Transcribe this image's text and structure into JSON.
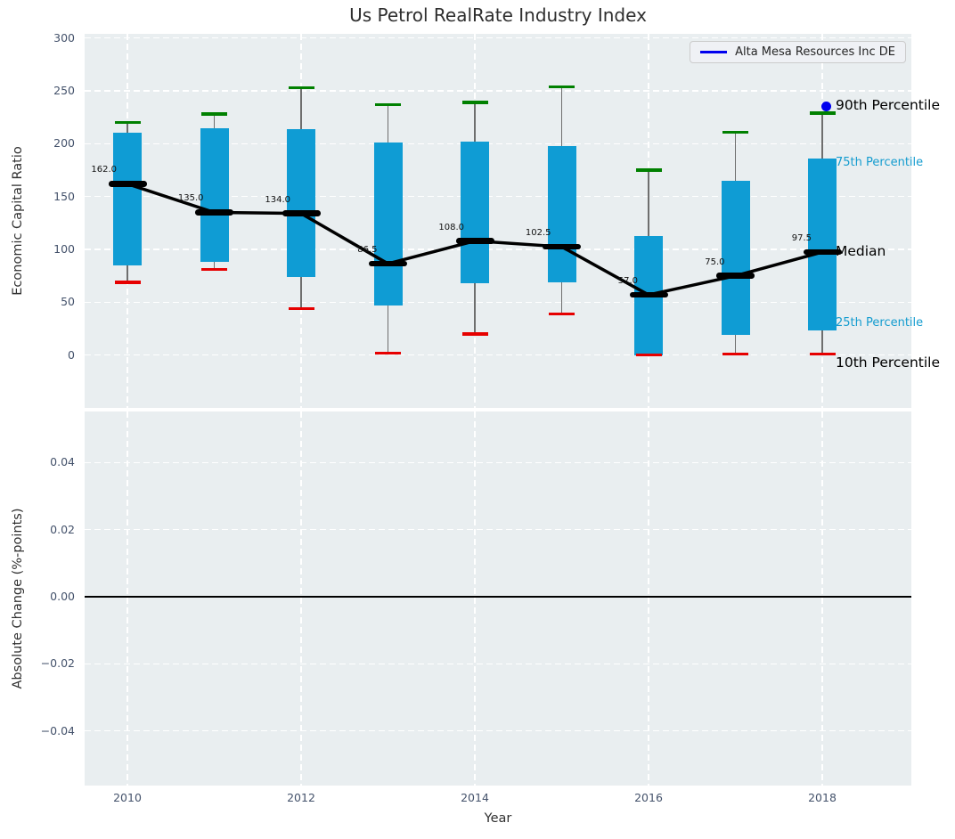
{
  "title": "Us Petrol RealRate Industry Index",
  "legend": {
    "label": "Alta Mesa Resources Inc DE",
    "line_color": "#0000ee"
  },
  "chart_data": [
    {
      "type": "boxplot",
      "panel": "top",
      "title": "Us Petrol RealRate Industry Index",
      "ylabel": "Economic Capital Ratio",
      "xlabel": "Year",
      "ylim": [
        -55,
        304
      ],
      "yticks": [
        0,
        50,
        100,
        150,
        200,
        250,
        300
      ],
      "ytick_labels": [
        "0",
        "50",
        "100",
        "150",
        "200",
        "250",
        "300"
      ],
      "xticks": [
        2010,
        2012,
        2014,
        2016,
        2018
      ],
      "xtick_labels": [
        "2010",
        "2012",
        "2014",
        "2016",
        "2018"
      ],
      "grid": true,
      "legend_position": "upper right",
      "years": [
        2010,
        2011,
        2012,
        2013,
        2014,
        2015,
        2016,
        2017,
        2018
      ],
      "series": [
        {
          "name": "90th Percentile",
          "values": [
            220,
            228,
            253,
            237,
            239,
            254,
            175,
            211,
            229
          ]
        },
        {
          "name": "75th Percentile",
          "values": [
            210,
            215,
            214,
            201,
            202,
            198,
            113,
            165,
            186
          ]
        },
        {
          "name": "Median",
          "values": [
            162.0,
            135.0,
            134.0,
            86.5,
            108.0,
            102.5,
            57.0,
            75.0,
            97.5
          ]
        },
        {
          "name": "25th Percentile",
          "values": [
            85,
            88,
            74,
            47,
            68,
            69,
            0,
            19,
            23
          ]
        },
        {
          "name": "10th Percentile",
          "values": [
            69,
            81,
            44,
            2,
            20,
            39,
            0,
            1,
            1
          ]
        }
      ],
      "median_value_labels": [
        "162.0",
        "135.0",
        "134.0",
        "86.5",
        "108.0",
        "102.5",
        "57.0",
        "75.0",
        "97.5"
      ],
      "company_point": {
        "name": "Alta Mesa Resources Inc DE",
        "year": 2018,
        "value": 235.5
      },
      "end_labels": [
        {
          "text": "90th Percentile",
          "value": 236,
          "color": "#000000",
          "size": "large"
        },
        {
          "text": "75th Percentile",
          "value": 182,
          "color": "#149ccf",
          "size": "small"
        },
        {
          "text": "Median",
          "value": 97.5,
          "color": "#000000",
          "size": "large"
        },
        {
          "text": "25th Percentile",
          "value": 30,
          "color": "#149ccf",
          "size": "small"
        },
        {
          "text": "10th Percentile",
          "value": -8,
          "color": "#000000",
          "size": "large"
        }
      ],
      "colors": {
        "box": "#0f9cd4",
        "whisker": "#6e6e6e",
        "top_cap": "#008000",
        "bottom_cap": "#e60000",
        "median": "#000000",
        "median_line": "#000000",
        "company_point": "#0000ee"
      }
    },
    {
      "type": "line",
      "panel": "bottom",
      "ylabel": "Absolute Change (%-points)",
      "yticks": [
        0.04,
        0.02,
        0.0,
        -0.02,
        -0.04
      ],
      "ytick_labels": [
        "0.04",
        "0.02",
        "0.00",
        "−0.02",
        "−0.04"
      ],
      "zero_line": 0.0,
      "series": []
    }
  ]
}
